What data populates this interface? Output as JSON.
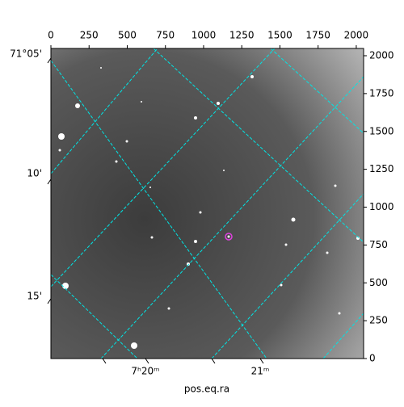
{
  "chart_data": {
    "type": "image",
    "xlabel": "pos.eq.ra",
    "xlim": [
      0,
      2048
    ],
    "xticks": [
      0,
      250,
      500,
      750,
      1000,
      1250,
      1500,
      1750,
      2000
    ],
    "ylim": [
      0,
      2048
    ],
    "yticks": [
      0,
      250,
      500,
      750,
      1000,
      1250,
      1500,
      1750,
      2000
    ],
    "dec_labels": [
      "71°05'",
      "10'",
      "15'"
    ],
    "ra_labels": [
      "7ʰ20ᵐ",
      "21ᵐ"
    ],
    "grid_color": "#00e5e5",
    "marker_color": "#e040e0"
  }
}
